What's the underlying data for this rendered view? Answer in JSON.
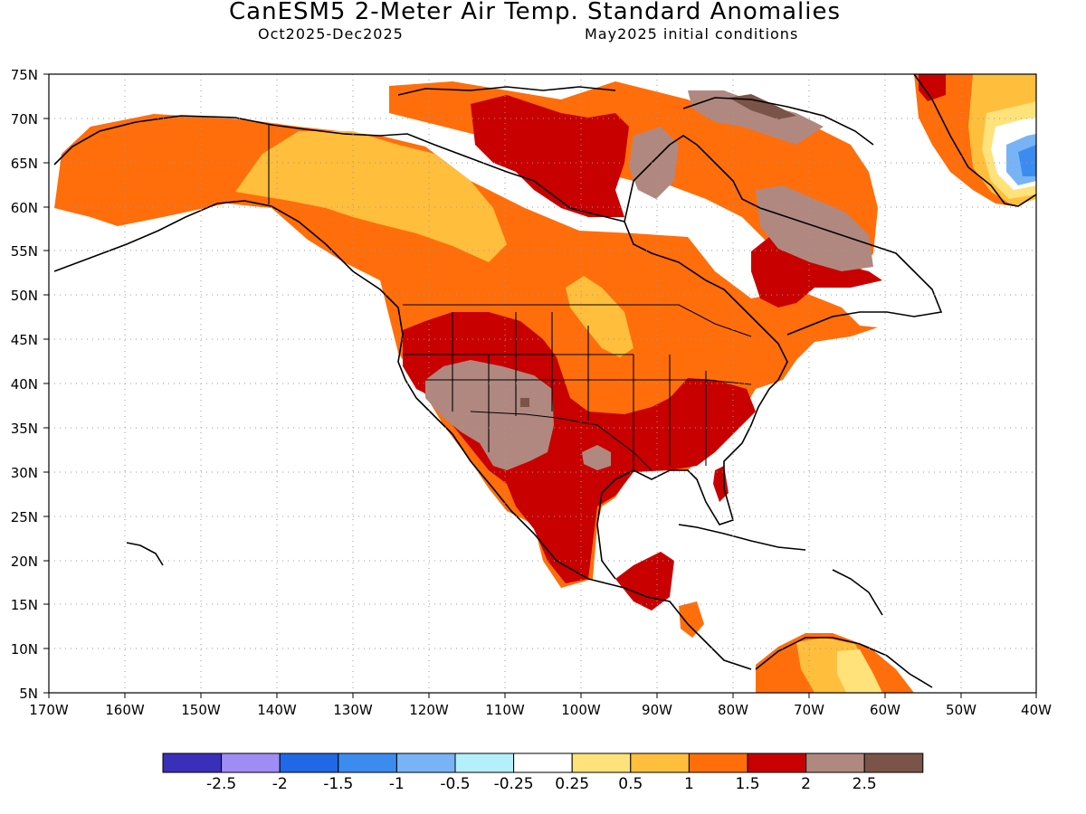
{
  "header": {
    "title": "CanESM5 2-Meter Air Temp. Standard Anomalies",
    "valid_period": "Oct2025-Dec2025",
    "initial_conditions": "May2025 initial conditions"
  },
  "map": {
    "lat_range": [
      5,
      75
    ],
    "lon_range": [
      -170,
      -40
    ],
    "lat_labels": [
      "75N",
      "70N",
      "65N",
      "60N",
      "55N",
      "50N",
      "45N",
      "40N",
      "35N",
      "30N",
      "25N",
      "20N",
      "15N",
      "10N",
      "5N"
    ],
    "lon_labels": [
      "170W",
      "160W",
      "150W",
      "140W",
      "130W",
      "120W",
      "110W",
      "100W",
      "90W",
      "80W",
      "70W",
      "60W",
      "50W",
      "40W"
    ],
    "grid": "dotted",
    "land_outlines": true
  },
  "colorbar": {
    "colors": [
      "#3a2fb8",
      "#a08cf5",
      "#2068e6",
      "#3c8cf0",
      "#78b4f5",
      "#b4f0fa",
      "#ffffff",
      "#ffe27a",
      "#ffbe3c",
      "#ff6e0a",
      "#c80000",
      "#b08880",
      "#7a5448"
    ],
    "labels": [
      "-2.5",
      "-2",
      "-1.5",
      "-1",
      "-0.5",
      "-0.25",
      "0.25",
      "0.5",
      "1",
      "1.5",
      "2",
      "2.5"
    ]
  }
}
